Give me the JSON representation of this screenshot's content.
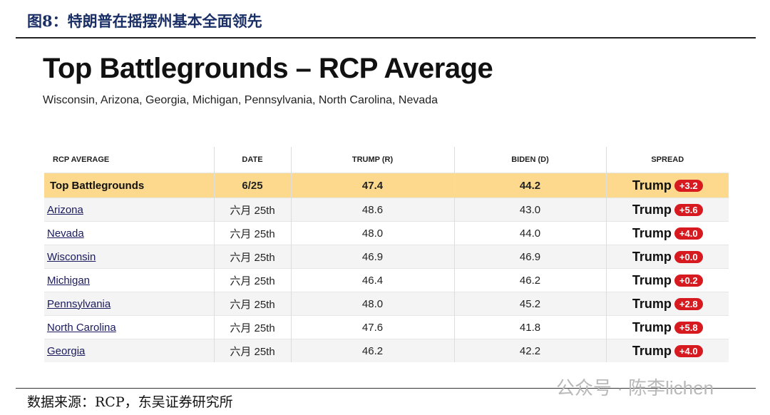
{
  "caption": "图8：特朗普在摇摆州基本全面领先",
  "title": "Top Battlegrounds – RCP Average",
  "subtitle": "Wisconsin, Arizona, Georgia, Michigan, Pennsylvania, North Carolina, Nevada",
  "table": {
    "headers": [
      "RCP AVERAGE",
      "DATE",
      "TRUMP (R)",
      "BIDEN (D)",
      "SPREAD"
    ],
    "rows": [
      [
        "Top Battlegrounds",
        "6/25",
        "47.4",
        "44.2",
        [
          "Trump",
          "+3.2"
        ]
      ],
      [
        "Arizona",
        "六月 25th",
        "48.6",
        "43.0",
        [
          "Trump",
          "+5.6"
        ]
      ],
      [
        "Nevada",
        "六月 25th",
        "48.0",
        "44.0",
        [
          "Trump",
          "+4.0"
        ]
      ],
      [
        "Wisconsin",
        "六月 25th",
        "46.9",
        "46.9",
        [
          "Trump",
          "+0.0"
        ]
      ],
      [
        "Michigan",
        "六月 25th",
        "46.4",
        "46.2",
        [
          "Trump",
          "+0.2"
        ]
      ],
      [
        "Pennsylvania",
        "六月 25th",
        "48.0",
        "45.2",
        [
          "Trump",
          "+2.8"
        ]
      ],
      [
        "North Carolina",
        "六月 25th",
        "47.6",
        "41.8",
        [
          "Trump",
          "+5.8"
        ]
      ],
      [
        "Georgia",
        "六月 25th",
        "46.2",
        "42.2",
        [
          "Trump",
          "+4.0"
        ]
      ]
    ]
  },
  "source": "数据来源：RCP，东吴证券研究所",
  "watermark": "公众号 · 陈李lichen"
}
